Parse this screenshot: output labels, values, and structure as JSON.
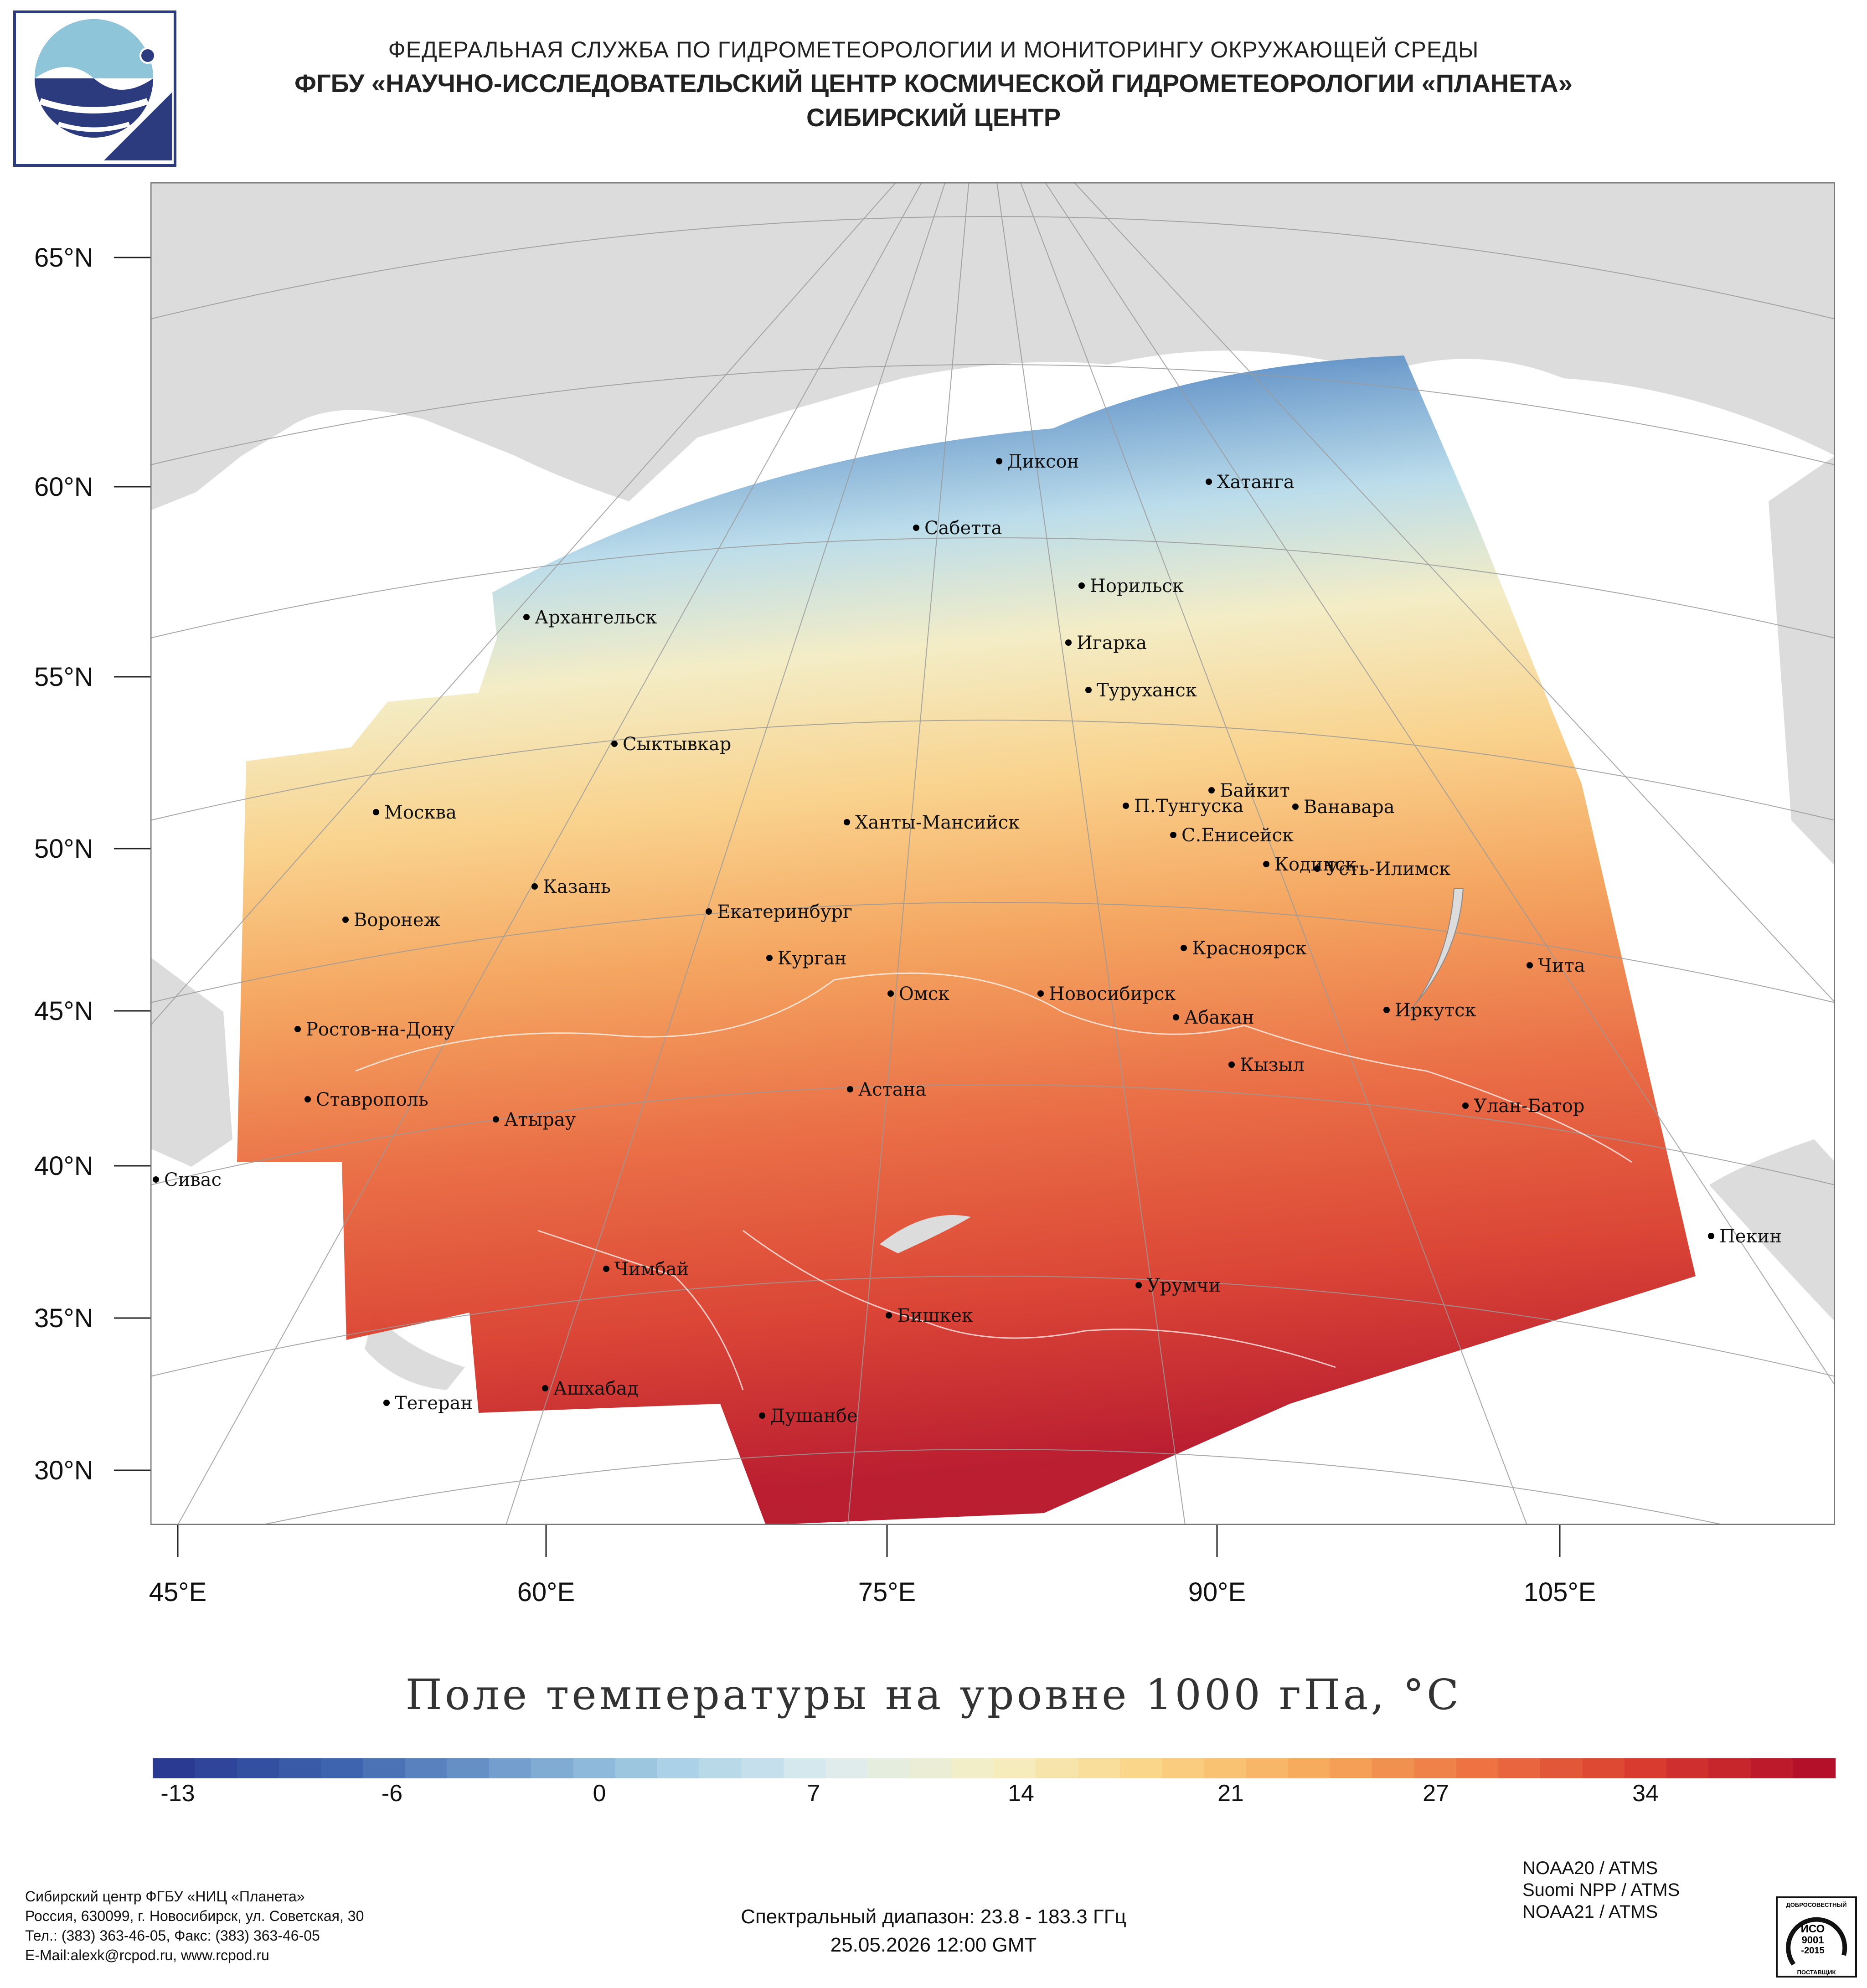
{
  "header": {
    "line1": "ФЕДЕРАЛЬНАЯ СЛУЖБА ПО ГИДРОМЕТЕОРОЛОГИИ И МОНИТОРИНГУ ОКРУЖАЮЩЕЙ СРЕДЫ",
    "line2": "ФГБУ «НАУЧНО-ИССЛЕДОВАТЕЛЬСКИЙ ЦЕНТР КОСМИЧЕСКОЙ ГИДРОМЕТЕОРОЛОГИИ «ПЛАНЕТА»",
    "line3": "СИБИРСКИЙ ЦЕНТР"
  },
  "map": {
    "lat_labels": [
      "65°N",
      "60°N",
      "55°N",
      "50°N",
      "45°N",
      "40°N",
      "35°N",
      "30°N"
    ],
    "lon_labels": [
      "45°E",
      "60°E",
      "75°E",
      "90°E",
      "105°E"
    ],
    "cities": [
      "Диксон",
      "Хатанга",
      "Сабетта",
      "Норильск",
      "Архангельск",
      "Игарка",
      "Туруханск",
      "Сыктывкар",
      "Байкит",
      "Москва",
      "П.Тунгуска",
      "Ванавара",
      "Ханты-Мансийск",
      "С.Енисейск",
      "Казань",
      "Кодинск",
      "Усть-Илимск",
      "Екатеринбург",
      "Воронеж",
      "Красноярск",
      "Курган",
      "Чита",
      "Омск",
      "Новосибирск",
      "Иркутск",
      "Ростов-на-Дону",
      "Абакан",
      "Кызыл",
      "Астана",
      "Ставрополь",
      "Улан-Батор",
      "Атырау",
      "Сивас",
      "Пекин",
      "Чимбай",
      "Урумчи",
      "Бишкек",
      "Ашхабад",
      "Тегеран",
      "Душанбе"
    ]
  },
  "colorbar": {
    "title": "Поле температуры на уровне 1000 гПа, °C",
    "ticks": [
      "-13",
      "-6",
      "0",
      "7",
      "14",
      "21",
      "27",
      "34"
    ],
    "colors": [
      "#2a3a93",
      "#3c63ad",
      "#6f9ccc",
      "#a6cfe4",
      "#dcecf0",
      "#f5eec2",
      "#fbd384",
      "#f7a95a",
      "#ec7042",
      "#d93a2e",
      "#b4102a"
    ]
  },
  "footer": {
    "org_lines": [
      "Сибирский центр ФГБУ «НИЦ «Планета»",
      "Россия, 630099, г. Новосибирск, ул. Советская, 30",
      "Тел.: (383) 363-46-05, Факс: (383) 363-46-05",
      "E-Mail:alexk@rcpod.ru, www.rcpod.ru"
    ],
    "spectral": "Спектральный диапазон: 23.8 - 183.3 ГГц",
    "datetime": "25.05.2026 12:00 GMT",
    "instruments": [
      "NOAA20 / ATMS",
      "Suomi NPP / ATMS",
      "NOAA21 / ATMS"
    ],
    "iso_lines": [
      "ДОБРОСОВЕСТНЫЙ",
      "ИСО",
      "9001",
      "-2015",
      "ПОСТАВЩИК"
    ]
  }
}
